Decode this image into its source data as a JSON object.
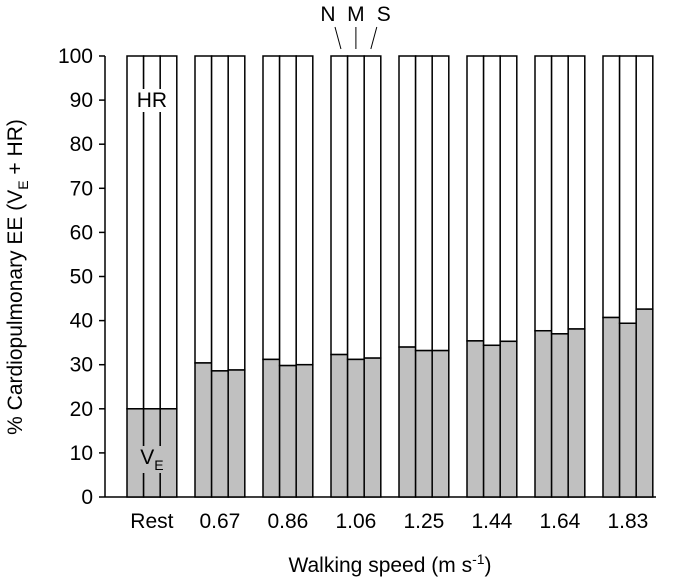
{
  "chart_data": {
    "type": "bar",
    "stacked": true,
    "percent_stacked": true,
    "xlabel_main": "Walking speed  (m s",
    "xlabel_sup": "-1",
    "xlabel_end": ")",
    "ylabel_main": "% Cardiopulmonary EE (V",
    "ylabel_sub": "E",
    "ylabel_end": " + HR)",
    "ylim": [
      0,
      100
    ],
    "yticks": [
      "0",
      "10",
      "20",
      "30",
      "40",
      "50",
      "60",
      "70",
      "80",
      "90",
      "100"
    ],
    "categories": [
      "Rest",
      "0.67",
      "0.86",
      "1.06",
      "1.25",
      "1.44",
      "1.64",
      "1.83"
    ],
    "sub_bars": [
      "N",
      "M",
      "S"
    ],
    "ve_values": [
      [
        20.0,
        20.0,
        20.0
      ],
      [
        30.4,
        28.6,
        28.8
      ],
      [
        31.2,
        29.8,
        30.0
      ],
      [
        32.3,
        31.2,
        31.5
      ],
      [
        34.0,
        33.2,
        33.2
      ],
      [
        35.4,
        34.4,
        35.3
      ],
      [
        37.7,
        37.0,
        38.1
      ],
      [
        40.7,
        39.4,
        42.6
      ]
    ],
    "hr_values": [
      [
        80.0,
        80.0,
        80.0
      ],
      [
        69.6,
        71.4,
        71.2
      ],
      [
        68.8,
        70.2,
        70.0
      ],
      [
        67.7,
        68.8,
        68.5
      ],
      [
        66.0,
        66.8,
        66.8
      ],
      [
        64.6,
        65.6,
        64.7
      ],
      [
        62.3,
        63.0,
        61.9
      ],
      [
        59.3,
        60.6,
        57.4
      ]
    ],
    "annotations": {
      "hr_label": "HR",
      "ve_label_main": "V",
      "ve_label_sub": "E",
      "sub_bar_labels": [
        "N",
        "M",
        "S"
      ]
    },
    "colors": {
      "ve": "#c0c0c0",
      "hr": "#ffffff",
      "stroke": "#000000"
    },
    "grid": false,
    "legend": "none"
  }
}
